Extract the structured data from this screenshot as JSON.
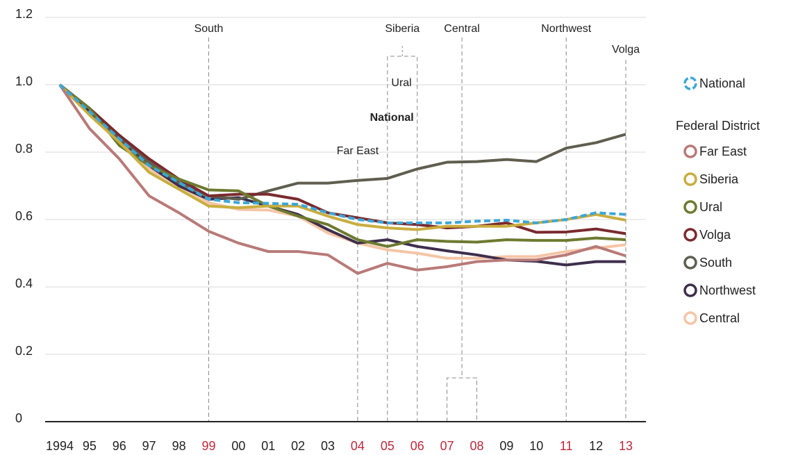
{
  "chart_data": {
    "type": "line",
    "categories": [
      "1994",
      "95",
      "96",
      "97",
      "98",
      "99",
      "00",
      "01",
      "02",
      "03",
      "04",
      "05",
      "06",
      "07",
      "08",
      "09",
      "10",
      "11",
      "12",
      "13"
    ],
    "category_colors": [
      "#222",
      "#222",
      "#222",
      "#222",
      "#222",
      "#c0283a",
      "#222",
      "#222",
      "#222",
      "#222",
      "#c0283a",
      "#c0283a",
      "#c0283a",
      "#c0283a",
      "#c0283a",
      "#222",
      "#222",
      "#c0283a",
      "#222",
      "#c0283a"
    ],
    "ylim": [
      0,
      1.2
    ],
    "yticks": [
      0,
      0.2,
      0.4,
      0.6,
      0.8,
      {
        "value": 1,
        "label": "1.0"
      },
      1.2
    ],
    "grid": true,
    "legend_title": "Federal District",
    "series": [
      {
        "name": "National",
        "color": "#3aa7d9",
        "dashed": true,
        "values": [
          1.0,
          0.92,
          0.84,
          0.76,
          0.71,
          0.66,
          0.65,
          0.648,
          0.645,
          0.62,
          0.6,
          0.59,
          0.59,
          0.59,
          0.595,
          0.598,
          0.59,
          0.6,
          0.62,
          0.615
        ]
      },
      {
        "name": "Far East",
        "color": "#b87a78",
        "values": [
          1.0,
          0.87,
          0.78,
          0.67,
          0.62,
          0.565,
          0.53,
          0.505,
          0.505,
          0.495,
          0.44,
          0.47,
          0.45,
          0.46,
          0.475,
          0.48,
          0.48,
          0.495,
          0.52,
          0.492
        ]
      },
      {
        "name": "Siberia",
        "color": "#c9ad3f",
        "values": [
          1.0,
          0.91,
          0.83,
          0.74,
          0.69,
          0.64,
          0.635,
          0.64,
          0.64,
          0.61,
          0.585,
          0.575,
          0.57,
          0.58,
          0.58,
          0.58,
          0.59,
          0.6,
          0.615,
          0.598
        ]
      },
      {
        "name": "Ural",
        "color": "#6d7a2f",
        "values": [
          1.0,
          0.93,
          0.82,
          0.76,
          0.72,
          0.688,
          0.685,
          0.64,
          0.61,
          0.585,
          0.54,
          0.52,
          0.54,
          0.535,
          0.533,
          0.54,
          0.538,
          0.538,
          0.545,
          0.54
        ]
      },
      {
        "name": "Volga",
        "color": "#7a2a2e",
        "values": [
          1.0,
          0.93,
          0.85,
          0.78,
          0.72,
          0.67,
          0.675,
          0.675,
          0.66,
          0.62,
          0.605,
          0.59,
          0.585,
          0.575,
          0.58,
          0.59,
          0.562,
          0.563,
          0.572,
          0.558
        ]
      },
      {
        "name": "South",
        "color": "#5f5e4f",
        "values": [
          1.0,
          0.93,
          0.84,
          0.77,
          0.71,
          0.67,
          0.66,
          0.685,
          0.708,
          0.708,
          0.716,
          0.722,
          0.75,
          0.77,
          0.772,
          0.778,
          0.772,
          0.812,
          0.828,
          0.853
        ]
      },
      {
        "name": "Northwest",
        "color": "#3d2f4c",
        "values": [
          1.0,
          0.92,
          0.84,
          0.76,
          0.7,
          0.66,
          0.665,
          0.64,
          0.615,
          0.57,
          0.53,
          0.54,
          0.52,
          0.507,
          0.495,
          0.48,
          0.476,
          0.465,
          0.475,
          0.475
        ]
      },
      {
        "name": "Central",
        "color": "#f5c5a5",
        "values": [
          1.0,
          0.92,
          0.83,
          0.75,
          0.7,
          0.65,
          0.63,
          0.628,
          0.61,
          0.56,
          0.53,
          0.51,
          0.5,
          0.485,
          0.485,
          0.49,
          0.49,
          0.505,
          0.515,
          0.525
        ]
      }
    ],
    "annotations": [
      {
        "text": "South",
        "span": [
          5
        ]
      },
      {
        "text": "Far East",
        "span": [
          10
        ]
      },
      {
        "text": "Siberia",
        "span": [
          11,
          12
        ]
      },
      {
        "text": "Ural",
        "span": [
          12
        ]
      },
      {
        "text": "National",
        "span": [
          12
        ]
      },
      {
        "text": "Central",
        "span": [
          13,
          14
        ]
      },
      {
        "text": "Northwest",
        "span": [
          17
        ]
      },
      {
        "text": "Volga",
        "span": [
          19
        ]
      }
    ]
  }
}
